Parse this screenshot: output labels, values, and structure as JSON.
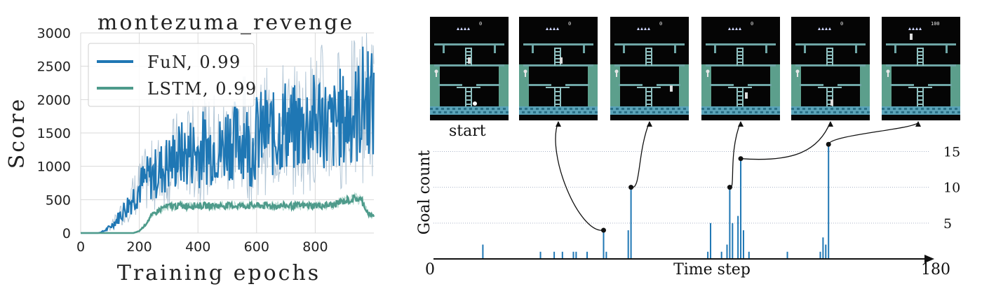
{
  "chart_data": [
    {
      "type": "line",
      "title": "montezuma_revenge",
      "xlabel": "Training epochs",
      "ylabel": "Score",
      "xlim": [
        0,
        1000
      ],
      "ylim": [
        0,
        3000
      ],
      "xticks": [
        0,
        200,
        400,
        600,
        800
      ],
      "yticks": [
        0,
        500,
        1000,
        1500,
        2000,
        2500,
        3000
      ],
      "grid": true,
      "legend_position": "top-left",
      "series": [
        {
          "name": "FuN, 0.99",
          "color": "#1f77b4",
          "x": [
            0,
            60,
            80,
            100,
            120,
            140,
            160,
            180,
            200,
            220,
            240,
            260,
            280,
            300,
            320,
            340,
            360,
            380,
            400,
            420,
            440,
            460,
            480,
            500,
            520,
            540,
            560,
            580,
            600,
            620,
            640,
            660,
            680,
            700,
            720,
            740,
            760,
            780,
            800,
            820,
            840,
            860,
            880,
            900,
            920,
            940,
            960,
            980,
            1000
          ],
          "y": [
            0,
            0,
            30,
            90,
            180,
            300,
            420,
            550,
            680,
            780,
            850,
            900,
            980,
            1050,
            1100,
            1180,
            1150,
            1250,
            1200,
            1300,
            1250,
            1350,
            1200,
            1450,
            1400,
            1350,
            1500,
            1200,
            1450,
            1500,
            1550,
            1450,
            1550,
            1650,
            1500,
            1600,
            1550,
            1700,
            1650,
            1800,
            1600,
            1550,
            1750,
            1650,
            1850,
            1750,
            1950,
            2100,
            1800
          ]
        },
        {
          "name": "LSTM, 0.99",
          "color": "#4e9b8b",
          "x": [
            0,
            180,
            200,
            220,
            240,
            260,
            280,
            300,
            340,
            400,
            500,
            600,
            700,
            800,
            860,
            880,
            900,
            920,
            940,
            960,
            980,
            990,
            1000
          ],
          "y": [
            0,
            0,
            30,
            120,
            250,
            320,
            380,
            400,
            410,
            410,
            410,
            410,
            410,
            410,
            420,
            450,
            480,
            500,
            520,
            480,
            300,
            260,
            250
          ]
        }
      ]
    },
    {
      "type": "bar",
      "xlabel": "Time step",
      "ylabel": "Goal count",
      "xlim": [
        0,
        180
      ],
      "ylim": [
        0,
        17
      ],
      "xticks_labels": [
        "0",
        "180"
      ],
      "yticks": [
        5,
        10,
        15
      ],
      "bar_color": "#1f77b4",
      "bars": [
        {
          "x": 18,
          "y": 2
        },
        {
          "x": 39,
          "y": 1
        },
        {
          "x": 44,
          "y": 1
        },
        {
          "x": 47,
          "y": 1
        },
        {
          "x": 51,
          "y": 1
        },
        {
          "x": 52,
          "y": 1
        },
        {
          "x": 56,
          "y": 1
        },
        {
          "x": 62,
          "y": 4
        },
        {
          "x": 63,
          "y": 1
        },
        {
          "x": 71,
          "y": 4
        },
        {
          "x": 72,
          "y": 10
        },
        {
          "x": 100,
          "y": 1
        },
        {
          "x": 101,
          "y": 5
        },
        {
          "x": 105,
          "y": 1
        },
        {
          "x": 107,
          "y": 2
        },
        {
          "x": 108,
          "y": 10
        },
        {
          "x": 109,
          "y": 5
        },
        {
          "x": 111,
          "y": 6
        },
        {
          "x": 112,
          "y": 14
        },
        {
          "x": 113,
          "y": 4
        },
        {
          "x": 115,
          "y": 1
        },
        {
          "x": 129,
          "y": 1
        },
        {
          "x": 141,
          "y": 1
        },
        {
          "x": 142,
          "y": 3
        },
        {
          "x": 143,
          "y": 2
        },
        {
          "x": 144,
          "y": 16
        }
      ],
      "highlighted_points": [
        {
          "x": 62,
          "y": 4
        },
        {
          "x": 72,
          "y": 10
        },
        {
          "x": 108,
          "y": 10
        },
        {
          "x": 112,
          "y": 14
        },
        {
          "x": 144,
          "y": 16
        }
      ],
      "frames": {
        "count": 6,
        "start_label": "start",
        "scores": [
          "0",
          "0",
          "0",
          "0",
          "0",
          "100"
        ]
      }
    }
  ]
}
